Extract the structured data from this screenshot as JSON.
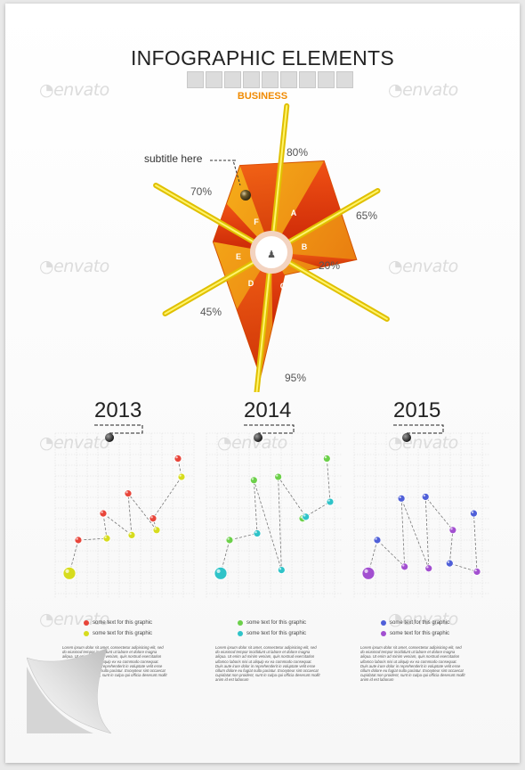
{
  "header": {
    "title": "INFOGRAPHIC ELEMENTS",
    "category": "BUSINESS"
  },
  "watermark": "envato",
  "radar": {
    "callout": "subtitle here",
    "segments": [
      "A",
      "B",
      "C",
      "D",
      "E",
      "F"
    ],
    "percent_labels": [
      "80%",
      "65%",
      "20%",
      "95%",
      "45%",
      "70%"
    ]
  },
  "chart_data": [
    {
      "type": "radar",
      "categories": [
        "A",
        "B",
        "C",
        "D",
        "E",
        "F"
      ],
      "values": [
        80,
        65,
        20,
        95,
        45,
        70
      ],
      "ylim": [
        0,
        100
      ]
    },
    {
      "type": "line",
      "title": "2013",
      "series": [
        {
          "color": "#e8453a",
          "values": [
            3.0,
            4.6,
            5.8,
            4.3,
            7.9
          ]
        },
        {
          "color": "#d7dc1e",
          "values": [
            1.0,
            3.1,
            3.3,
            3.6,
            6.8
          ]
        }
      ],
      "ylim": [
        0,
        9
      ]
    },
    {
      "type": "line",
      "title": "2014",
      "series": [
        {
          "color": "#6cd04a",
          "values": [
            3.0,
            6.6,
            6.8,
            4.3,
            7.9
          ]
        },
        {
          "color": "#2fc3c8",
          "values": [
            1.0,
            3.4,
            1.2,
            4.4,
            5.3
          ]
        }
      ],
      "ylim": [
        0,
        9
      ]
    },
    {
      "type": "line",
      "title": "2015",
      "series": [
        {
          "color": "#4f5fd8",
          "values": [
            3.0,
            5.5,
            5.6,
            1.6,
            4.6
          ]
        },
        {
          "color": "#a24fd0",
          "values": [
            1.0,
            1.4,
            1.3,
            3.6,
            1.1
          ]
        }
      ],
      "ylim": [
        0,
        9
      ]
    }
  ],
  "panels": [
    {
      "year": "2013",
      "legend": [
        "some text for this graphic",
        "some text for this graphic"
      ],
      "paragraph": "Lorem ipsum dolor sit amet, consectetur adipisicing elit, sed do eiusmod tempor incididunt ut labore et dolore magna aliqua. Ut enim ad minim veniam, quis nostrud exercitation ullamco laboris nisi ut aliquip ex ea commodo consequat. Duis aute irure dolor in reprehenderit in voluptate velit esse cillum dolore eu fugiat nulla pariatur. Excepteur sint occaecat cupidatat non proident, sunt in culpa qui officia deserunt mollit anim id est laborum"
    },
    {
      "year": "2014",
      "legend": [
        "some text for this graphic",
        "some text for this graphic"
      ],
      "paragraph": "Lorem ipsum dolor sit amet, consectetur adipisicing elit, sed do eiusmod tempor incididunt ut labore et dolore magna aliqua. Ut enim ad minim veniam, quis nostrud exercitation ullamco laboris nisi ut aliquip ex ea commodo consequat. Duis aute irure dolor in reprehenderit in voluptate velit esse cillum dolore eu fugiat nulla pariatur. Excepteur sint occaecat cupidatat non proident, sunt in culpa qui officia deserunt mollit anim id est laborum"
    },
    {
      "year": "2015",
      "legend": [
        "some text for this graphic",
        "some text for this graphic"
      ],
      "paragraph": "Lorem ipsum dolor sit amet, consectetur adipisicing elit, sed do eiusmod tempor incididunt ut labore et dolore magna aliqua. Ut enim ad minim veniam, quis nostrud exercitation ullamco laboris nisi ut aliquip ex ea commodo consequat. Duis aute irure dolor in reprehenderit in voluptate velit esse cillum dolore eu fugiat nulla pariatur. Excepteur sint occaecat cupidatat non proident, sunt in culpa qui officia deserunt mollit anim id est laborum"
    }
  ]
}
